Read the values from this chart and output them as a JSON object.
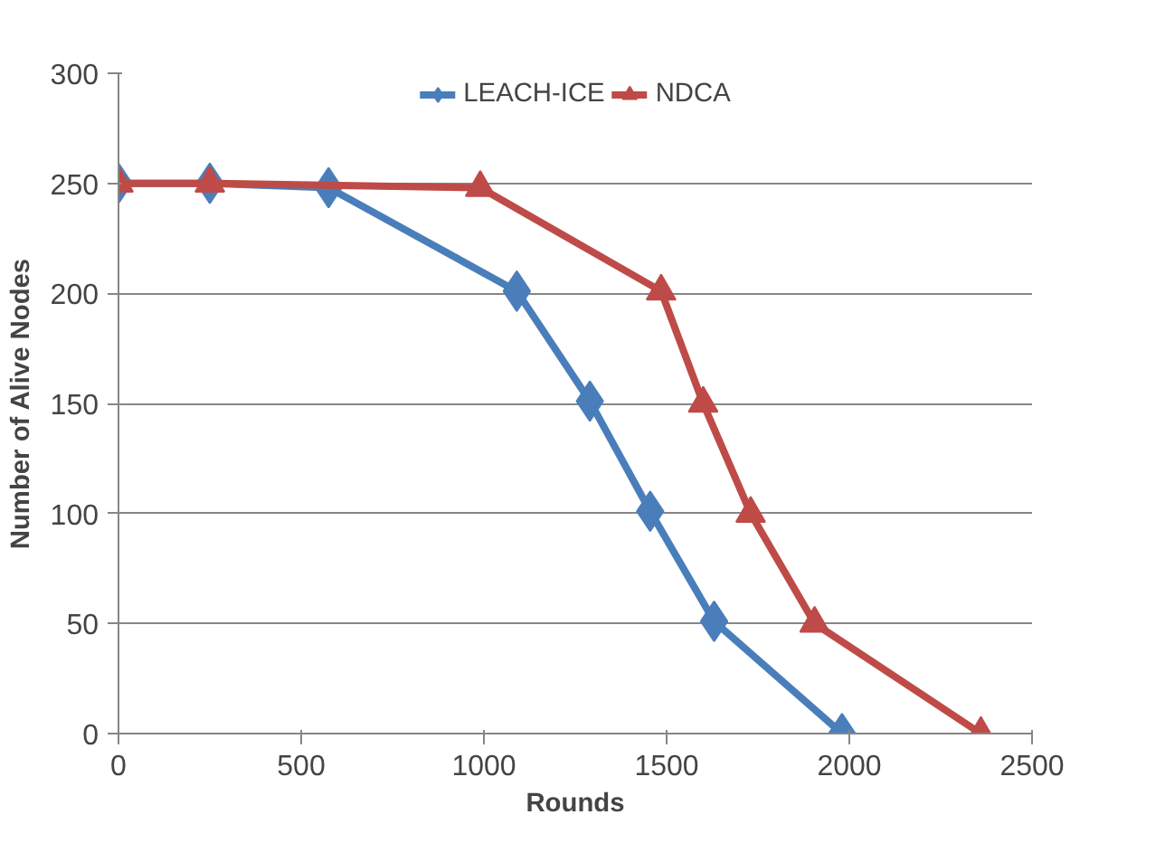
{
  "chart_data": {
    "type": "line",
    "xlabel": "Rounds",
    "ylabel": "Number of Alive Nodes",
    "xlim": [
      0,
      2500
    ],
    "xticks": [
      0,
      500,
      1000,
      1500,
      2000,
      2500
    ],
    "ylim": [
      0,
      300
    ],
    "yticks": [
      0,
      50,
      100,
      150,
      200,
      250,
      300
    ],
    "grid": "y",
    "legend": "top",
    "line_style": "solid",
    "series": [
      {
        "name": "LEACH-ICE",
        "color": "#4a7ebb",
        "marker": "diamond",
        "x": [
          0,
          250,
          575,
          1090,
          1290,
          1455,
          1630,
          1980
        ],
        "values": [
          250,
          250,
          248,
          201,
          151,
          101,
          51,
          0
        ]
      },
      {
        "name": "NDCA",
        "color": "#be4b48",
        "marker": "triangle",
        "x": [
          0,
          250,
          990,
          1485,
          1600,
          1730,
          1905,
          2360
        ],
        "values": [
          250,
          250,
          248,
          201,
          150,
          100,
          50,
          0
        ]
      }
    ]
  }
}
